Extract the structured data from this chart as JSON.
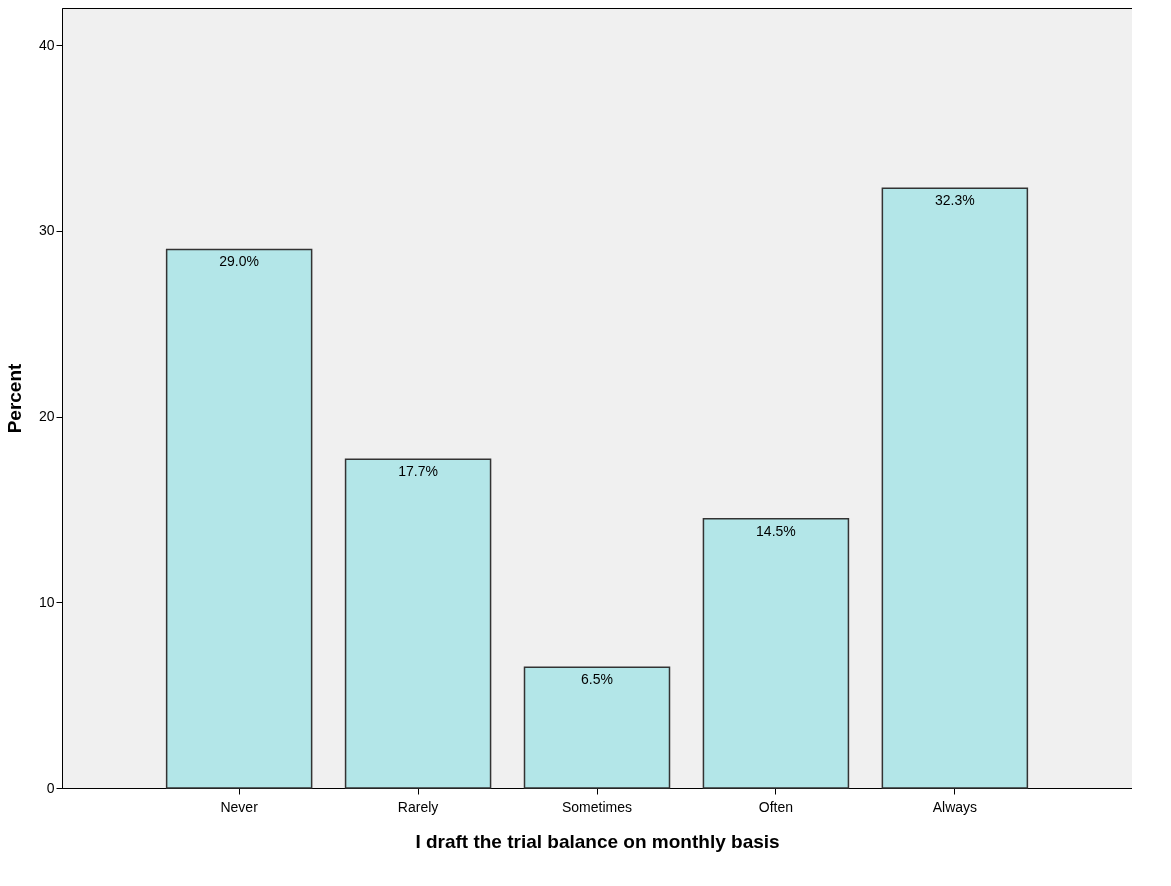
{
  "chart_data": {
    "type": "bar",
    "xlabel": "I draft the trial balance on monthly basis",
    "ylabel": "Percent",
    "categories": [
      "Never",
      "Rarely",
      "Sometimes",
      "Often",
      "Always"
    ],
    "values": [
      29.0,
      17.7,
      6.5,
      14.5,
      32.3
    ],
    "value_labels": [
      "29.0%",
      "17.7%",
      "6.5%",
      "14.5%",
      "32.3%"
    ],
    "color": "#b3e6e8",
    "ylim": [
      0,
      42
    ],
    "yticks": [
      0,
      10,
      20,
      30,
      40
    ],
    "grid": false
  }
}
